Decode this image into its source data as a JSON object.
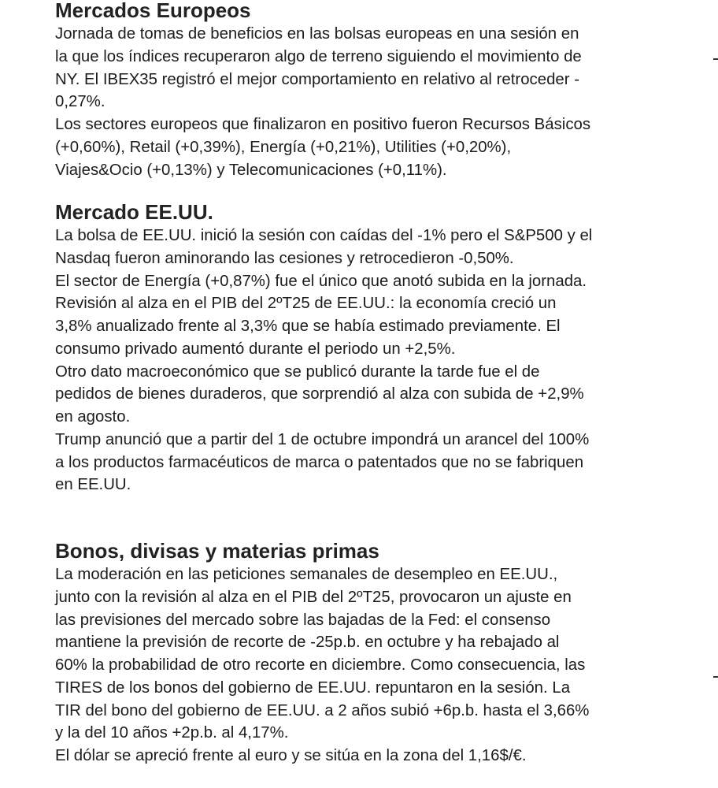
{
  "sections": [
    {
      "title": "Mercados Europeos",
      "lines": [
        "Jornada de tomas de beneficios en las bolsas europeas en una sesión en",
        "la que los índices recuperaron algo de terreno siguiendo el movimiento de",
        "NY. El IBEX35 registró el mejor comportamiento en relativo al retroceder -",
        "0,27%.",
        "Los sectores europeos que finalizaron en positivo fueron Recursos Básicos",
        "(+0,60%), Retail (+0,39%), Energía (+0,21%), Utilities (+0,20%),",
        "Viajes&Ocio (+0,13%) y Telecomunicaciones (+0,11%)."
      ]
    },
    {
      "title": "Mercado EE.UU.",
      "lines": [
        "La bolsa de EE.UU. inició la sesión con caídas del -1% pero el S&P500 y el",
        "Nasdaq fueron aminorando las cesiones y retrocedieron -0,50%.",
        "El sector de Energía (+0,87%) fue el único que anotó subida en la jornada.",
        "Revisión al alza en el PIB del 2ºT25 de EE.UU.: la economía creció un",
        "3,8% anualizado frente al 3,3% que se había estimado previamente. El",
        "consumo privado aumentó durante el periodo un +2,5%.",
        "Otro dato macroeconómico que se publicó durante la tarde fue el de",
        "pedidos de bienes duraderos, que sorprendió al alza con subida de +2,9%",
        "en agosto.",
        "Trump anunció que a partir del 1 de octubre impondrá un arancel del 100%",
        "a los productos farmacéuticos de marca o patentados que no se fabriquen",
        "en EE.UU."
      ]
    },
    {
      "title": "Bonos, divisas y materias primas",
      "lines": [
        "La moderación en las peticiones semanales de desempleo en EE.UU.,",
        "junto con la revisión al alza en el PIB del 2ºT25, provocaron un ajuste en",
        "las previsiones del mercado sobre las bajadas de la Fed: el consenso",
        "mantiene la previsión de recorte de -25p.b. en octubre y ha rebajado al",
        "60% la probabilidad de otro recorte en diciembre. Como consecuencia, las",
        "TIRES de los bonos del gobierno de EE.UU. repuntaron en la sesión. La",
        "TIR del bono del gobierno de EE.UU. a 2 años subió +6p.b. hasta el 3,66%",
        "y la del 10 años +2p.b. al 4,17%.",
        "El dólar se apreció frente al euro y se sitúa en la zona del 1,16$/€."
      ]
    }
  ]
}
